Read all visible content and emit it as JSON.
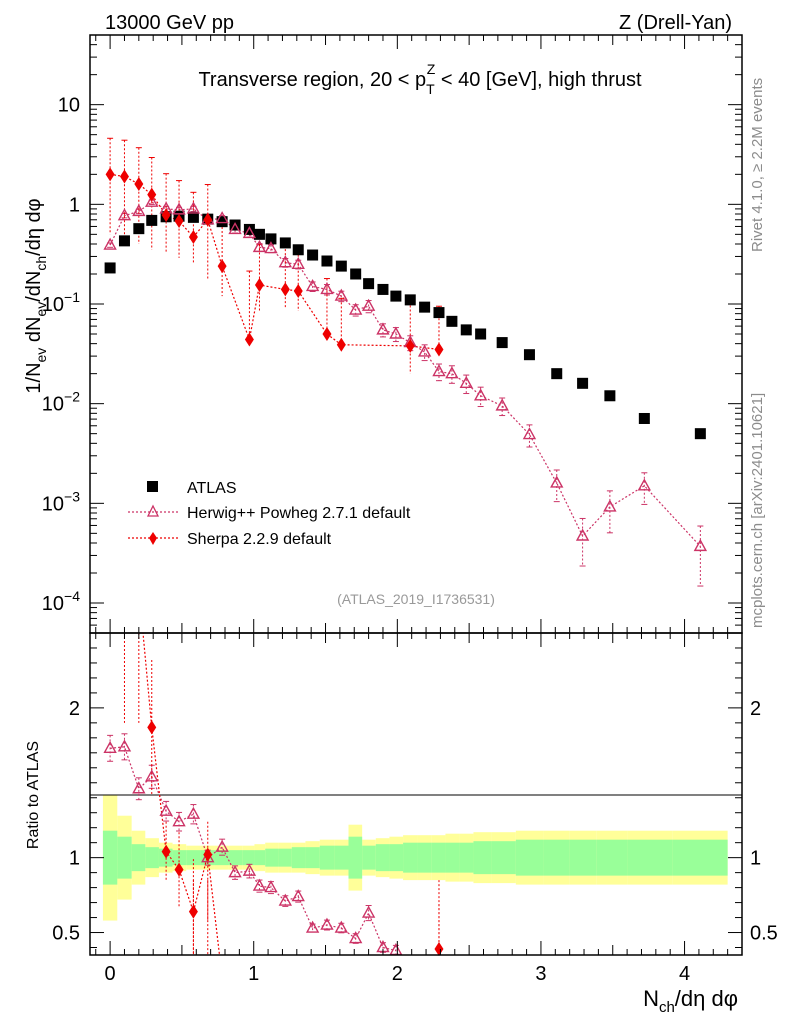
{
  "header": {
    "left": "13000 GeV pp",
    "right": "Z (Drell-Yan)"
  },
  "side_labels": {
    "top": "Rivet 4.1.0, ≥ 2.2M events",
    "bottom": "mcplots.cern.ch [arXiv:2401.10621]"
  },
  "colors": {
    "atlas": "#000000",
    "herwig": "#cc3366",
    "sherpa": "#ee0000",
    "band_inner": "#99ff99",
    "band_outer": "#ffff99"
  },
  "chart_data": [
    {
      "type": "scatter",
      "panel": "main",
      "title": "Transverse region, 20 < p_T^Z < 40 [GeV], high thrust",
      "title_parts": {
        "pre": "Transverse region, 20 < p",
        "sub": "T",
        "sup": "Z",
        "post": " < 40 [GeV], high thrust"
      },
      "ylabel": "1/N_ev dN_ev/dN_ch/dη dφ",
      "ylabel_parts": [
        "1/N",
        "ev",
        " dN",
        "ev",
        "/dN",
        "ch",
        "/dη dφ"
      ],
      "yscale": "log",
      "ylim": [
        5e-05,
        50
      ],
      "xlim": [
        -0.14,
        4.4
      ],
      "y_tick_labels": [
        {
          "v": 10,
          "base": "10",
          "exp": ""
        },
        {
          "v": 1,
          "base": "1",
          "exp": ""
        },
        {
          "v": 0.1,
          "base": "10",
          "exp": "−1"
        },
        {
          "v": 0.01,
          "base": "10",
          "exp": "−2"
        },
        {
          "v": 0.001,
          "base": "10",
          "exp": "−3"
        },
        {
          "v": 0.0001,
          "base": "10",
          "exp": "−4"
        }
      ],
      "watermark": "(ATLAS_2019_I1736531)",
      "legend": [
        {
          "key": "atlas",
          "label": "ATLAS"
        },
        {
          "key": "herwig",
          "label": "Herwig++ Powheg 2.7.1 default"
        },
        {
          "key": "sherpa",
          "label": "Sherpa 2.2.9 default"
        }
      ],
      "series": [
        {
          "name": "ATLAS",
          "key": "atlas",
          "marker": "square",
          "x": [
            0.0,
            0.1,
            0.2,
            0.29,
            0.39,
            0.48,
            0.58,
            0.68,
            0.78,
            0.87,
            0.97,
            1.04,
            1.12,
            1.22,
            1.31,
            1.41,
            1.51,
            1.61,
            1.71,
            1.8,
            1.9,
            1.99,
            2.09,
            2.19,
            2.29,
            2.38,
            2.48,
            2.58,
            2.73,
            2.92,
            3.11,
            3.29,
            3.48,
            3.72,
            4.11
          ],
          "y": [
            0.23,
            0.43,
            0.57,
            0.69,
            0.75,
            0.76,
            0.74,
            0.71,
            0.67,
            0.62,
            0.56,
            0.5,
            0.45,
            0.41,
            0.35,
            0.31,
            0.27,
            0.24,
            0.2,
            0.16,
            0.14,
            0.12,
            0.11,
            0.093,
            0.082,
            0.067,
            0.055,
            0.05,
            0.041,
            0.031,
            0.02,
            0.016,
            0.012,
            0.0071,
            0.005
          ]
        },
        {
          "name": "Herwig++ Powheg 2.7.1 default",
          "key": "herwig",
          "marker": "open-triangle",
          "x": [
            0.0,
            0.1,
            0.2,
            0.29,
            0.39,
            0.48,
            0.58,
            0.68,
            0.78,
            0.87,
            0.97,
            1.04,
            1.12,
            1.22,
            1.31,
            1.41,
            1.51,
            1.61,
            1.71,
            1.8,
            1.9,
            1.99,
            2.09,
            2.19,
            2.29,
            2.38,
            2.48,
            2.58,
            2.73,
            2.92,
            3.11,
            3.29,
            3.48,
            3.72,
            4.11
          ],
          "y": [
            0.39,
            0.77,
            0.85,
            1.05,
            0.9,
            0.88,
            0.9,
            0.7,
            0.72,
            0.56,
            0.51,
            0.37,
            0.36,
            0.26,
            0.25,
            0.15,
            0.14,
            0.12,
            0.087,
            0.095,
            0.055,
            0.05,
            0.041,
            0.033,
            0.021,
            0.02,
            0.016,
            0.012,
            0.0095,
            0.0049,
            0.0016,
            0.00047,
            0.00092,
            0.0015,
            0.00037
          ],
          "err_rel": [
            0.05,
            0.05,
            0.05,
            0.05,
            0.06,
            0.06,
            0.06,
            0.07,
            0.07,
            0.08,
            0.08,
            0.09,
            0.09,
            0.1,
            0.1,
            0.11,
            0.12,
            0.12,
            0.13,
            0.14,
            0.15,
            0.16,
            0.17,
            0.18,
            0.19,
            0.2,
            0.21,
            0.22,
            0.2,
            0.25,
            0.35,
            0.5,
            0.45,
            0.35,
            0.6
          ]
        },
        {
          "name": "Sherpa 2.2.9 default",
          "key": "sherpa",
          "marker": "diamond",
          "x": [
            0.0,
            0.1,
            0.2,
            0.29,
            0.39,
            0.48,
            0.58,
            0.68,
            0.78,
            0.97,
            1.04,
            1.22,
            1.31,
            1.51,
            1.61,
            2.09,
            2.29
          ],
          "y": [
            2.0,
            1.9,
            1.6,
            1.25,
            0.78,
            0.68,
            0.47,
            0.7,
            0.24,
            0.044,
            0.155,
            0.14,
            0.135,
            0.05,
            0.039,
            0.038,
            0.035
          ],
          "err_up": [
            2.6,
            2.5,
            2.1,
            1.7,
            1.25,
            1.05,
            0.85,
            0.88,
            0.41,
            0.17,
            0.24,
            0.25,
            0.24,
            0.13,
            0.075,
            0.068,
            0.06
          ],
          "err_down": [
            1.5,
            1.45,
            1.2,
            0.9,
            0.46,
            0.39,
            0.22,
            0.52,
            0.12,
            1e-05,
            0.07,
            0.05,
            0.05,
            1e-05,
            0.005,
            0.018,
            1e-05
          ]
        }
      ]
    },
    {
      "type": "scatter",
      "panel": "ratio",
      "ylabel": "Ratio to ATLAS",
      "xlabel": "N_ch/dη dφ",
      "xlabel_parts": [
        "N",
        "ch",
        "/dη dφ"
      ],
      "ylim": [
        0.35,
        2.5
      ],
      "xlim": [
        -0.14,
        4.4
      ],
      "y_ticks": [
        0.5,
        1,
        2
      ],
      "y_tick_labels": [
        "0.5",
        "1",
        "2"
      ],
      "x_ticks": [
        0,
        1,
        2,
        3,
        4
      ],
      "x_tick_labels": [
        "0",
        "1",
        "2",
        "3",
        "4"
      ],
      "band_edges": [
        -0.05,
        0.05,
        0.15,
        0.245,
        0.34,
        0.435,
        0.53,
        0.63,
        0.73,
        0.825,
        0.92,
        1.005,
        1.08,
        1.17,
        1.265,
        1.36,
        1.46,
        1.56,
        1.66,
        1.755,
        1.85,
        1.945,
        2.04,
        2.14,
        2.24,
        2.335,
        2.43,
        2.53,
        2.655,
        2.825,
        3.015,
        3.2,
        3.385,
        3.6,
        3.915,
        4.3
      ],
      "band_inner": [
        0.18,
        0.14,
        0.09,
        0.07,
        0.06,
        0.05,
        0.05,
        0.05,
        0.05,
        0.05,
        0.05,
        0.05,
        0.06,
        0.06,
        0.07,
        0.07,
        0.08,
        0.08,
        0.14,
        0.08,
        0.09,
        0.09,
        0.1,
        0.1,
        0.1,
        0.1,
        0.1,
        0.11,
        0.11,
        0.12,
        0.12,
        0.12,
        0.12,
        0.12,
        0.12
      ],
      "band_outer": [
        0.42,
        0.28,
        0.18,
        0.13,
        0.1,
        0.09,
        0.08,
        0.08,
        0.08,
        0.08,
        0.08,
        0.09,
        0.1,
        0.1,
        0.1,
        0.11,
        0.12,
        0.12,
        0.22,
        0.12,
        0.13,
        0.14,
        0.15,
        0.15,
        0.15,
        0.16,
        0.16,
        0.17,
        0.17,
        0.18,
        0.18,
        0.18,
        0.18,
        0.18,
        0.18
      ],
      "series": [
        {
          "name": "Herwig++ Powheg 2.7.1 default",
          "key": "herwig",
          "marker": "open-triangle",
          "x": [
            0.0,
            0.1,
            0.2,
            0.29,
            0.39,
            0.48,
            0.58,
            0.68,
            0.78,
            0.87,
            0.97,
            1.04,
            1.12,
            1.22,
            1.31,
            1.41,
            1.51,
            1.61,
            1.71,
            1.8,
            1.9,
            1.99
          ],
          "y": [
            1.73,
            1.74,
            1.46,
            1.54,
            1.31,
            1.24,
            1.29,
            1.0,
            1.07,
            0.9,
            0.91,
            0.81,
            0.8,
            0.71,
            0.74,
            0.53,
            0.55,
            0.53,
            0.46,
            0.63,
            0.4,
            0.38
          ],
          "err_rel": [
            0.05,
            0.05,
            0.05,
            0.05,
            0.05,
            0.05,
            0.05,
            0.05,
            0.05,
            0.05,
            0.05,
            0.05,
            0.05,
            0.05,
            0.05,
            0.05,
            0.06,
            0.06,
            0.07,
            0.08,
            0.08,
            0.09
          ]
        },
        {
          "name": "Sherpa 2.2.9 default",
          "key": "sherpa",
          "marker": "diamond",
          "x": [
            0.29,
            0.39,
            0.48,
            0.58,
            0.68,
            2.29
          ],
          "y": [
            1.87,
            1.04,
            0.92,
            0.64,
            1.02,
            0.39
          ],
          "err_up": [
            0.45,
            0.2,
            0.25,
            0.35,
            0.22,
            0.3
          ],
          "err_down": [
            0.45,
            0.2,
            0.25,
            0.5,
            0.45,
            0.3
          ]
        }
      ]
    }
  ]
}
